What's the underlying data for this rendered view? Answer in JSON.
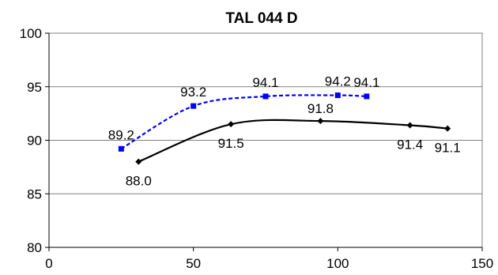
{
  "chart_data": {
    "type": "line",
    "title": "TAL 044 D",
    "xlabel": "",
    "ylabel": "",
    "xlim": [
      0,
      150
    ],
    "ylim": [
      80,
      100
    ],
    "x_ticks": [
      0,
      50,
      100,
      150
    ],
    "y_ticks": [
      80,
      85,
      90,
      95,
      100
    ],
    "grid": "horizontal",
    "legend": "none",
    "series": [
      {
        "color": "#0000ff",
        "style": "dashed",
        "marker": "square",
        "x": [
          25,
          50,
          75,
          100,
          110
        ],
        "y": [
          89.2,
          93.2,
          94.1,
          94.2,
          94.1
        ],
        "labels": [
          "89.2",
          "93.2",
          "94.1",
          "94.2",
          "94.1"
        ]
      },
      {
        "color": "#000000",
        "style": "solid",
        "marker": "diamond",
        "x": [
          31,
          63,
          94,
          125,
          138
        ],
        "y": [
          88.0,
          91.5,
          91.8,
          91.4,
          91.1
        ],
        "labels": [
          "88.0",
          "91.5",
          "91.8",
          "91.4",
          "91.1"
        ]
      }
    ]
  }
}
